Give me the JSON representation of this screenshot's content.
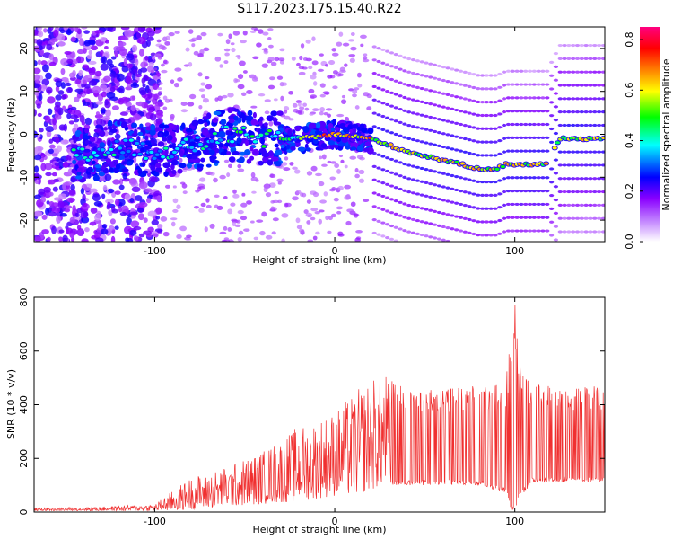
{
  "figure_title": "S117.2023.175.15.40.R22",
  "chart_data": [
    {
      "type": "heatmap",
      "name": "spectrogram",
      "xlabel": "Height of straight line (km)",
      "ylabel": "Frequency (Hz)",
      "xlim": [
        -167,
        150
      ],
      "ylim": [
        -25,
        25
      ],
      "x_ticks": [
        -100,
        0,
        100
      ],
      "y_ticks": [
        -20,
        -10,
        0,
        10,
        20
      ],
      "colorbar": {
        "label": "Normalized spectral amplitude",
        "range": [
          0,
          0.85
        ],
        "ticks": [
          "0.0",
          "0.2",
          "0.4",
          "0.6",
          "0.8"
        ],
        "colormap": [
          "#ffffff",
          "#8a00ff",
          "#0000ff",
          "#00ffff",
          "#00ff00",
          "#ffff00",
          "#ff8000",
          "#ff0000",
          "#ff0080"
        ]
      },
      "ridge": {
        "x": [
          -140,
          -120,
          -100,
          -80,
          -60,
          -40,
          -20,
          0,
          20,
          40,
          60,
          80,
          90,
          95,
          110,
          118,
          125,
          150
        ],
        "y": [
          -5,
          -3,
          -4,
          -3,
          0,
          -1,
          -1,
          0,
          -1,
          -4,
          -6,
          -8,
          -8,
          -7,
          -7,
          -7,
          -1,
          -1
        ]
      }
    },
    {
      "type": "line",
      "name": "snr",
      "xlabel": "Height of straight line (km)",
      "ylabel": "SNR (10 * v/v)",
      "xlim": [
        -167,
        150
      ],
      "ylim": [
        0,
        800
      ],
      "x_ticks": [
        -100,
        0,
        100
      ],
      "y_ticks": [
        0,
        200,
        400,
        600,
        800
      ],
      "color": "#f03030",
      "envelope": {
        "x": [
          -167,
          -130,
          -100,
          -90,
          -80,
          -60,
          -40,
          -20,
          0,
          10,
          20,
          28,
          32,
          40,
          60,
          80,
          95,
          98,
          100,
          102,
          110,
          130,
          150
        ],
        "upper": [
          15,
          20,
          30,
          80,
          130,
          170,
          230,
          320,
          380,
          440,
          500,
          530,
          490,
          470,
          460,
          470,
          480,
          700,
          820,
          560,
          480,
          470,
          470
        ],
        "lower": [
          5,
          5,
          5,
          5,
          10,
          20,
          30,
          40,
          60,
          60,
          80,
          100,
          100,
          100,
          100,
          100,
          70,
          10,
          0,
          50,
          110,
          110,
          110
        ]
      }
    }
  ]
}
